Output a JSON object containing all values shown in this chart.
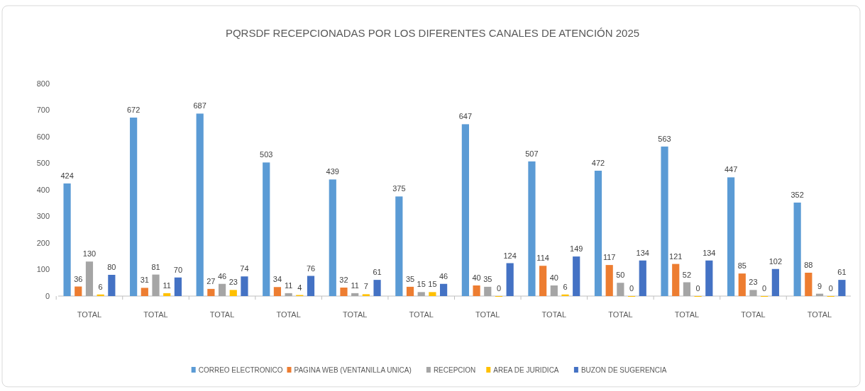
{
  "chart_data": {
    "type": "bar",
    "title": "PQRSDF RECEPCIONADAS POR LOS DIFERENTES CANALES DE ATENCIÓN 2025",
    "categories": [
      "TOTAL",
      "TOTAL",
      "TOTAL",
      "TOTAL",
      "TOTAL",
      "TOTAL",
      "TOTAL",
      "TOTAL",
      "TOTAL",
      "TOTAL",
      "TOTAL",
      "TOTAL"
    ],
    "series": [
      {
        "name": "CORREO ELECTRONICO",
        "color": "#5b9bd5",
        "values": [
          424,
          672,
          687,
          503,
          439,
          375,
          647,
          507,
          472,
          563,
          447,
          352
        ]
      },
      {
        "name": "PAGINA WEB (VENTANILLA UNICA)",
        "color": "#ed7d31",
        "values": [
          36,
          31,
          27,
          34,
          32,
          35,
          40,
          114,
          117,
          121,
          85,
          88
        ]
      },
      {
        "name": "RECEPCION",
        "color": "#a5a5a5",
        "values": [
          130,
          81,
          46,
          11,
          11,
          15,
          35,
          40,
          50,
          52,
          23,
          9
        ]
      },
      {
        "name": "AREA DE JURIDICA",
        "color": "#ffc000",
        "values": [
          6,
          11,
          23,
          4,
          7,
          15,
          0,
          6,
          0,
          0,
          0,
          0
        ]
      },
      {
        "name": "BUZON DE SUGERENCIA",
        "color": "#4472c4",
        "values": [
          80,
          70,
          74,
          76,
          61,
          46,
          124,
          149,
          134,
          134,
          102,
          61
        ]
      }
    ],
    "ylim": [
      0,
      800
    ],
    "yticks": [
      0,
      100,
      200,
      300,
      400,
      500,
      600,
      700,
      800
    ],
    "data_labels": true,
    "legend": "bottom"
  }
}
